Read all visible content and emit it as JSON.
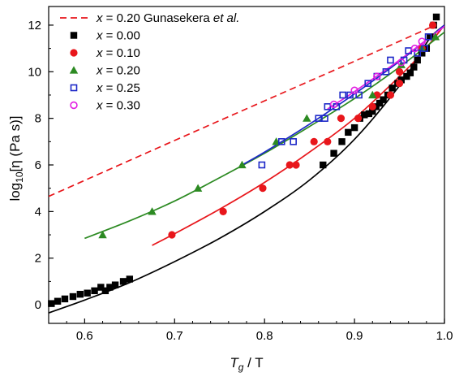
{
  "chart_data": {
    "type": "scatter",
    "title": "",
    "xlim": [
      0.56,
      1.0
    ],
    "ylim": [
      -0.8,
      12.8
    ],
    "x_ticks": [
      "0.6",
      "0.7",
      "0.8",
      "0.9",
      "1.0"
    ],
    "y_ticks": [
      "0",
      "2",
      "4",
      "6",
      "8",
      "10",
      "12"
    ],
    "xlabel": {
      "base": "T",
      "sub": "g",
      "rest": " / T"
    },
    "ylabel": {
      "pre": "log",
      "sub": "10",
      "post": "[η (Pa s)]"
    },
    "legend": [
      {
        "prefix": "x",
        "value": " = 0.20 ",
        "ref": "Gunasekera ",
        "etal": "et al."
      },
      {
        "prefix": "x",
        "value": " = 0.00"
      },
      {
        "prefix": "x",
        "value": " = 0.10"
      },
      {
        "prefix": "x",
        "value": " = 0.20"
      },
      {
        "prefix": "x",
        "value": " = 0.25"
      },
      {
        "prefix": "x",
        "value": " = 0.30"
      }
    ],
    "series": [
      {
        "name": "x = 0.20 Gunasekera et al.",
        "kind": "dashed-line",
        "color": "#e8161b",
        "points": [
          [
            0.56,
            4.65
          ],
          [
            0.7,
            7.05
          ],
          [
            0.8,
            8.75
          ],
          [
            0.9,
            10.45
          ],
          [
            0.99,
            12.0
          ]
        ]
      },
      {
        "name": "x = 0.00",
        "kind": "markers",
        "marker": "filled-square",
        "color": "#000000",
        "points": [
          [
            0.563,
            0.05
          ],
          [
            0.57,
            0.15
          ],
          [
            0.578,
            0.25
          ],
          [
            0.587,
            0.35
          ],
          [
            0.595,
            0.45
          ],
          [
            0.603,
            0.5
          ],
          [
            0.611,
            0.6
          ],
          [
            0.618,
            0.75
          ],
          [
            0.623,
            0.6
          ],
          [
            0.628,
            0.75
          ],
          [
            0.634,
            0.85
          ],
          [
            0.643,
            1.0
          ],
          [
            0.65,
            1.1
          ],
          [
            0.865,
            6.0
          ],
          [
            0.877,
            6.5
          ],
          [
            0.886,
            7.0
          ],
          [
            0.893,
            7.4
          ],
          [
            0.9,
            7.6
          ],
          [
            0.906,
            8.0
          ],
          [
            0.911,
            8.15
          ],
          [
            0.916,
            8.2
          ],
          [
            0.92,
            8.3
          ],
          [
            0.924,
            8.5
          ],
          [
            0.928,
            8.65
          ],
          [
            0.932,
            8.8
          ],
          [
            0.937,
            9.0
          ],
          [
            0.942,
            9.3
          ],
          [
            0.948,
            9.5
          ],
          [
            0.952,
            9.65
          ],
          [
            0.958,
            9.8
          ],
          [
            0.962,
            9.95
          ],
          [
            0.966,
            10.2
          ],
          [
            0.97,
            10.5
          ],
          [
            0.975,
            10.8
          ],
          [
            0.98,
            11.0
          ],
          [
            0.984,
            11.5
          ],
          [
            0.988,
            12.0
          ],
          [
            0.991,
            12.35
          ]
        ]
      },
      {
        "name": "x = 0.10",
        "kind": "markers",
        "marker": "filled-circle",
        "color": "#e8161b",
        "points": [
          [
            0.697,
            3.0
          ],
          [
            0.754,
            4.0
          ],
          [
            0.798,
            5.0
          ],
          [
            0.828,
            6.0
          ],
          [
            0.835,
            6.0
          ],
          [
            0.855,
            7.0
          ],
          [
            0.87,
            7.0
          ],
          [
            0.885,
            8.0
          ],
          [
            0.904,
            8.0
          ],
          [
            0.92,
            8.5
          ],
          [
            0.925,
            9.0
          ],
          [
            0.94,
            9.0
          ],
          [
            0.95,
            9.5
          ],
          [
            0.95,
            10.0
          ],
          [
            0.975,
            11.0
          ],
          [
            0.987,
            12.0
          ]
        ]
      },
      {
        "name": "x = 0.20",
        "kind": "markers",
        "marker": "filled-triangle",
        "color": "#2c8a22",
        "points": [
          [
            0.62,
            3.0
          ],
          [
            0.675,
            4.0
          ],
          [
            0.726,
            5.0
          ],
          [
            0.775,
            6.0
          ],
          [
            0.813,
            7.0
          ],
          [
            0.847,
            8.0
          ],
          [
            0.92,
            9.0
          ],
          [
            0.952,
            10.3
          ],
          [
            0.975,
            11.0
          ],
          [
            0.99,
            11.5
          ]
        ]
      },
      {
        "name": "x = 0.25",
        "kind": "markers",
        "marker": "open-square",
        "color": "#1d28c8",
        "points": [
          [
            0.797,
            6.0
          ],
          [
            0.819,
            7.0
          ],
          [
            0.832,
            7.0
          ],
          [
            0.86,
            8.0
          ],
          [
            0.867,
            8.0
          ],
          [
            0.87,
            8.5
          ],
          [
            0.88,
            8.5
          ],
          [
            0.887,
            9.0
          ],
          [
            0.895,
            9.0
          ],
          [
            0.905,
            9.0
          ],
          [
            0.915,
            9.5
          ],
          [
            0.925,
            9.8
          ],
          [
            0.935,
            10.0
          ],
          [
            0.94,
            10.5
          ],
          [
            0.955,
            10.5
          ],
          [
            0.96,
            10.9
          ],
          [
            0.97,
            10.8
          ],
          [
            0.978,
            11.0
          ],
          [
            0.982,
            11.5
          ]
        ]
      },
      {
        "name": "x = 0.30",
        "kind": "markers",
        "marker": "open-circle",
        "color": "#e21ee2",
        "points": [
          [
            0.877,
            8.6
          ],
          [
            0.9,
            9.2
          ],
          [
            0.925,
            9.8
          ],
          [
            0.952,
            10.4
          ],
          [
            0.967,
            11.0
          ],
          [
            0.975,
            11.3
          ]
        ]
      },
      {
        "name": "fit x = 0.00",
        "kind": "fit-line",
        "color": "#000000",
        "points": [
          [
            0.56,
            -0.35
          ],
          [
            0.6,
            0.2
          ],
          [
            0.65,
            0.95
          ],
          [
            0.7,
            1.85
          ],
          [
            0.75,
            2.85
          ],
          [
            0.8,
            4.0
          ],
          [
            0.85,
            5.35
          ],
          [
            0.9,
            7.1
          ],
          [
            0.95,
            9.4
          ],
          [
            0.97,
            10.6
          ],
          [
            0.985,
            11.5
          ],
          [
            1.0,
            12.0
          ]
        ]
      },
      {
        "name": "fit x = 0.10",
        "kind": "fit-line",
        "color": "#e8161b",
        "points": [
          [
            0.675,
            2.55
          ],
          [
            0.7,
            3.05
          ],
          [
            0.75,
            4.1
          ],
          [
            0.8,
            5.25
          ],
          [
            0.85,
            6.55
          ],
          [
            0.9,
            8.0
          ],
          [
            0.95,
            9.8
          ],
          [
            0.975,
            10.8
          ],
          [
            1.0,
            12.0
          ]
        ]
      },
      {
        "name": "fit x = 0.20",
        "kind": "fit-line",
        "color": "#2c8a22",
        "points": [
          [
            0.6,
            2.85
          ],
          [
            0.65,
            3.6
          ],
          [
            0.7,
            4.45
          ],
          [
            0.75,
            5.45
          ],
          [
            0.8,
            6.5
          ],
          [
            0.85,
            7.65
          ],
          [
            0.9,
            8.85
          ],
          [
            0.95,
            10.2
          ],
          [
            1.0,
            11.7
          ]
        ]
      },
      {
        "name": "fit x = 0.25",
        "kind": "fit-line",
        "color": "#1d28c8",
        "points": [
          [
            0.775,
            6.0
          ],
          [
            0.8,
            6.55
          ],
          [
            0.85,
            7.75
          ],
          [
            0.9,
            9.05
          ],
          [
            0.95,
            10.45
          ],
          [
            1.0,
            12.0
          ]
        ]
      },
      {
        "name": "fit x = 0.30",
        "kind": "fit-line",
        "color": "#e21ee2",
        "points": [
          [
            0.87,
            8.4
          ],
          [
            0.9,
            9.15
          ],
          [
            0.95,
            10.5
          ],
          [
            1.0,
            11.95
          ]
        ]
      }
    ]
  }
}
